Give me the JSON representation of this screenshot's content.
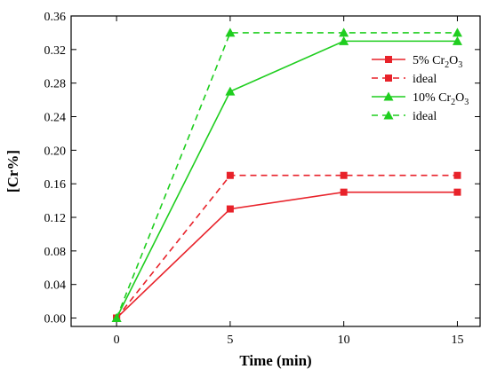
{
  "chart_data": {
    "type": "line",
    "xlabel": "Time (min)",
    "ylabel": "[Cr%]",
    "xlim": [
      -2,
      16
    ],
    "ylim": [
      -0.01,
      0.36
    ],
    "xticks": [
      0,
      5,
      10,
      15
    ],
    "yticks": [
      0.0,
      0.04,
      0.08,
      0.12,
      0.16,
      0.2,
      0.24,
      0.28,
      0.32,
      0.36
    ],
    "ytick_labels": [
      "0.00",
      "0.04",
      "0.08",
      "0.12",
      "0.16",
      "0.20",
      "0.24",
      "0.28",
      "0.32",
      "0.36"
    ],
    "grid": false,
    "legend_position": "top-right",
    "series": [
      {
        "name": "5% Cr2O3",
        "legend_main": "5% Cr",
        "legend_sub1": "2",
        "legend_mid": "O",
        "legend_sub2": "3",
        "color": "#e8222a",
        "dash": "solid",
        "marker": "square",
        "x": [
          0,
          5,
          10,
          15
        ],
        "y": [
          0.0,
          0.13,
          0.15,
          0.15
        ]
      },
      {
        "name": "ideal",
        "legend_main": "ideal",
        "color": "#e8222a",
        "dash": "dashed",
        "marker": "square",
        "x": [
          0,
          5,
          10,
          15
        ],
        "y": [
          0.0,
          0.17,
          0.17,
          0.17
        ]
      },
      {
        "name": "10% Cr2O3",
        "legend_main": "10% Cr",
        "legend_sub1": "2",
        "legend_mid": "O",
        "legend_sub2": "3",
        "color": "#1fce1f",
        "dash": "solid",
        "marker": "triangle",
        "x": [
          0,
          5,
          10,
          15
        ],
        "y": [
          0.0,
          0.27,
          0.33,
          0.33
        ]
      },
      {
        "name": "ideal",
        "legend_main": "ideal",
        "color": "#1fce1f",
        "dash": "dashed",
        "marker": "triangle",
        "x": [
          0,
          5,
          10,
          15
        ],
        "y": [
          0.0,
          0.34,
          0.34,
          0.34
        ]
      }
    ]
  }
}
